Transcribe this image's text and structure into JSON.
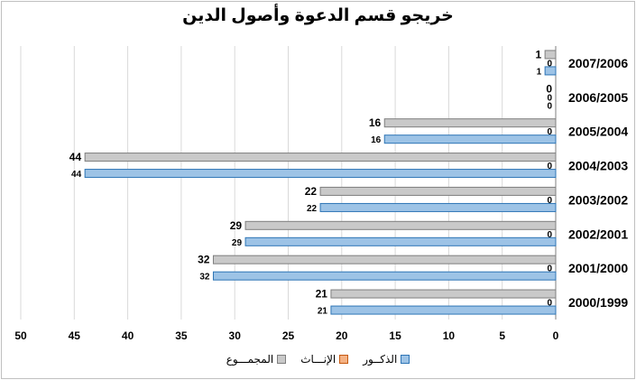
{
  "chart_data": {
    "type": "bar",
    "orientation": "horizontal",
    "title": "خريجو قسم الدعوة وأصول الدين",
    "categories": [
      "2000/1999",
      "2001/2000",
      "2002/2001",
      "2003/2002",
      "2004/2003",
      "2005/2004",
      "2006/2005",
      "2007/2006"
    ],
    "series": [
      {
        "name": "الذكــور",
        "color": "#9dc3e6",
        "stroke": "#2e75b6",
        "values": [
          21,
          32,
          29,
          22,
          44,
          16,
          0,
          1
        ]
      },
      {
        "name": "الإنـــاث",
        "color": "#f4b183",
        "stroke": "#c55a11",
        "values": [
          0,
          0,
          0,
          0,
          0,
          0,
          0,
          0
        ]
      },
      {
        "name": "المجمـــوع",
        "color": "#c9c9c9",
        "stroke": "#7f7f7f",
        "values": [
          21,
          32,
          29,
          22,
          44,
          16,
          0,
          1
        ]
      }
    ],
    "xlim": [
      0,
      50
    ],
    "x_ticks": [
      0,
      5,
      10,
      15,
      20,
      25,
      30,
      35,
      40,
      45,
      50
    ],
    "x_axis_reversed": true,
    "grid": true,
    "legend_position": "bottom"
  }
}
